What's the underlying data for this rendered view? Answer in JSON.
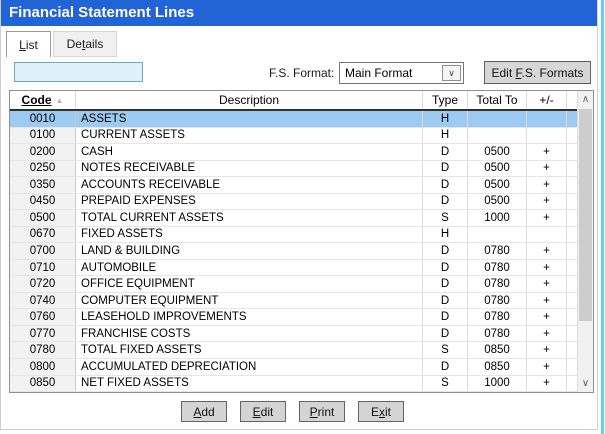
{
  "window": {
    "title": "Financial Statement Lines"
  },
  "tabs": {
    "list": {
      "pre": "",
      "key": "L",
      "post": "ist"
    },
    "details": {
      "pre": "De",
      "key": "t",
      "post": "ails"
    }
  },
  "toolbar": {
    "search_value": "",
    "fs_format_label": "F.S. Format:",
    "fs_format_value": "Main Format",
    "edit_formats_button": {
      "pre": "Edit ",
      "key": "F",
      "post": ".S. Formats"
    }
  },
  "icons": {
    "sort_ascending": "▲",
    "combo_chevron": "∨",
    "scroll_up": "∧",
    "scroll_down": "∨"
  },
  "table": {
    "columns": [
      {
        "label": "Code",
        "sorted": "ascending"
      },
      {
        "label": "Description"
      },
      {
        "label": "Type"
      },
      {
        "label": "Total To"
      },
      {
        "label": "+/-"
      }
    ],
    "rows": [
      {
        "code": "0010",
        "description": "ASSETS",
        "type": "H",
        "total_to": "",
        "plus_minus": "",
        "selected": true
      },
      {
        "code": "0100",
        "description": "CURRENT ASSETS",
        "type": "H",
        "total_to": "",
        "plus_minus": ""
      },
      {
        "code": "0200",
        "description": "CASH",
        "type": "D",
        "total_to": "0500",
        "plus_minus": "+"
      },
      {
        "code": "0250",
        "description": "NOTES RECEIVABLE",
        "type": "D",
        "total_to": "0500",
        "plus_minus": "+"
      },
      {
        "code": "0350",
        "description": "ACCOUNTS RECEIVABLE",
        "type": "D",
        "total_to": "0500",
        "plus_minus": "+"
      },
      {
        "code": "0450",
        "description": "PREPAID EXPENSES",
        "type": "D",
        "total_to": "0500",
        "plus_minus": "+"
      },
      {
        "code": "0500",
        "description": "TOTAL CURRENT ASSETS",
        "type": "S",
        "total_to": "1000",
        "plus_minus": "+"
      },
      {
        "code": "0670",
        "description": "FIXED ASSETS",
        "type": "H",
        "total_to": "",
        "plus_minus": ""
      },
      {
        "code": "0700",
        "description": "LAND & BUILDING",
        "type": "D",
        "total_to": "0780",
        "plus_minus": "+"
      },
      {
        "code": "0710",
        "description": "AUTOMOBILE",
        "type": "D",
        "total_to": "0780",
        "plus_minus": "+"
      },
      {
        "code": "0720",
        "description": "OFFICE EQUIPMENT",
        "type": "D",
        "total_to": "0780",
        "plus_minus": "+"
      },
      {
        "code": "0740",
        "description": "COMPUTER EQUIPMENT",
        "type": "D",
        "total_to": "0780",
        "plus_minus": "+"
      },
      {
        "code": "0760",
        "description": "LEASEHOLD IMPROVEMENTS",
        "type": "D",
        "total_to": "0780",
        "plus_minus": "+"
      },
      {
        "code": "0770",
        "description": "FRANCHISE COSTS",
        "type": "D",
        "total_to": "0780",
        "plus_minus": "+"
      },
      {
        "code": "0780",
        "description": "TOTAL FIXED ASSETS",
        "type": "S",
        "total_to": "0850",
        "plus_minus": "+"
      },
      {
        "code": "0800",
        "description": "ACCUMULATED DEPRECIATION",
        "type": "D",
        "total_to": "0850",
        "plus_minus": "+"
      },
      {
        "code": "0850",
        "description": "NET FIXED ASSETS",
        "type": "S",
        "total_to": "1000",
        "plus_minus": "+"
      }
    ]
  },
  "footer": {
    "add_button": {
      "pre": "",
      "key": "A",
      "post": "dd"
    },
    "edit_button": {
      "pre": "",
      "key": "E",
      "post": "dit"
    },
    "print_button": {
      "pre": "",
      "key": "P",
      "post": "rint"
    },
    "exit_button": {
      "pre": "E",
      "key": "x",
      "post": "it"
    }
  },
  "colors": {
    "titlebar": "#2264d6",
    "selected_row": "#9ccaf0",
    "search_field_bg": "#def0fa",
    "right_edge_accent": "#6fc9ee"
  }
}
